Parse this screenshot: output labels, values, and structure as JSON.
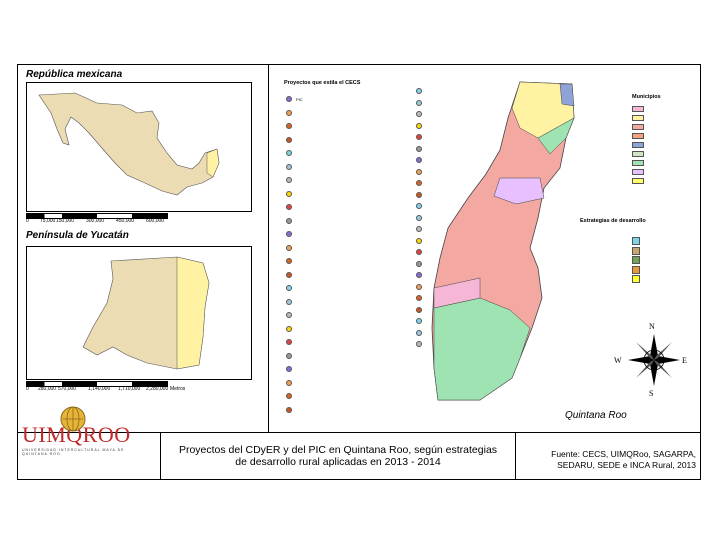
{
  "inset_titles": {
    "mexico": "República mexicana",
    "yucatan": "Península de Yucatán",
    "quintana_roo": "Quintana Roo"
  },
  "legend_projects": {
    "title": "Proyectos que estila el CECS",
    "items": [
      "PIC",
      "",
      "",
      "",
      "",
      "",
      "",
      "",
      "",
      "",
      "",
      "",
      "",
      "",
      "",
      "",
      "",
      "",
      "",
      "",
      "",
      "",
      "",
      "",
      "",
      "",
      "",
      "",
      "",
      "",
      "",
      "",
      "",
      "",
      "",
      "",
      "",
      "",
      "",
      "",
      "",
      "",
      "",
      "",
      "",
      "",
      ""
    ]
  },
  "legend_municipios": {
    "title": "Municipios",
    "colors": [
      "#f6b7d6",
      "#fff3a3",
      "#f4a8a2",
      "#f3a37b",
      "#8fa3d9",
      "#cfe6c6",
      "#9fe3b2",
      "#e8c0ff",
      "#ffff66"
    ]
  },
  "legend_estrategias": {
    "title": "Estrategias de desarrollo",
    "colors": [
      "#7fd3e8",
      "#c8a86b",
      "#6fa35a",
      "#e89b3a",
      "#ffff33"
    ]
  },
  "scalebar_mexico": [
    "0",
    "75,000",
    "150,000",
    "300,000",
    "450,000",
    "600,000"
  ],
  "scalebar_yucatan": [
    "0",
    "280,000",
    "570,000",
    "1,140,000",
    "1,710,000",
    "2,280,000"
  ],
  "scalebar_units": "Metros",
  "compass": {
    "n": "N",
    "e": "E",
    "w": "W",
    "s": "S"
  },
  "logo": {
    "text": "UIMQROO",
    "subtitle": "UNIVERSIDAD INTERCULTURAL MAYA DE QUINTANA ROO"
  },
  "caption": {
    "line1": "Proyectos del CDyER y del PIC en Quintana Roo, según estrategias",
    "line2": "de desarrollo rural aplicadas en 2013 - 2014"
  },
  "source": {
    "line1": "Fuente: CECS, UIMQRoo, SAGARPA,",
    "line2": "SEDARU, SEDE e INCA Rural, 2013"
  },
  "colors": {
    "land": "#ecdcb4",
    "highlight": "#fff3a3"
  }
}
